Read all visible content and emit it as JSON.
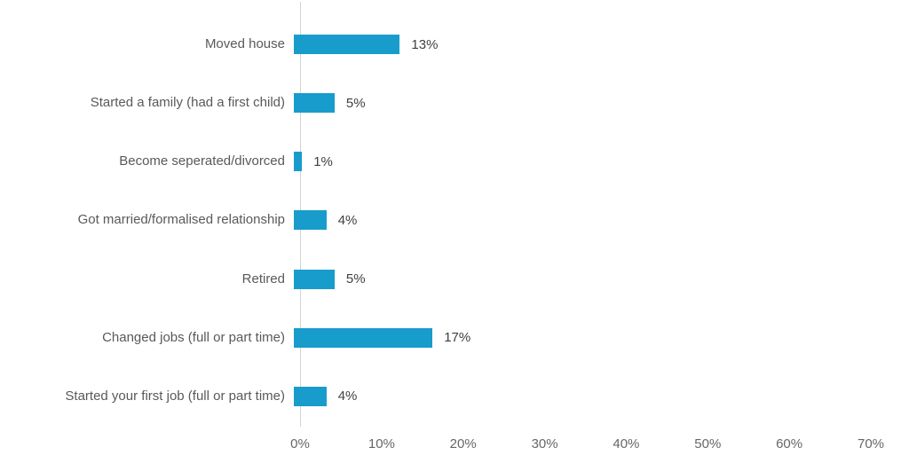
{
  "chart_data": {
    "type": "bar",
    "orientation": "horizontal",
    "categories": [
      "Moved house",
      "Started a family (had a first child)",
      "Become seperated/divorced",
      "Got married/formalised relationship",
      "Retired",
      "Changed jobs (full or part time)",
      "Started your first job (full or part time)"
    ],
    "values": [
      13,
      5,
      1,
      4,
      5,
      17,
      4
    ],
    "value_labels": [
      "13%",
      "5%",
      "1%",
      "4%",
      "5%",
      "17%",
      "4%"
    ],
    "x_ticks": [
      "0%",
      "10%",
      "20%",
      "30%",
      "40%",
      "50%",
      "60%",
      "70%"
    ],
    "xlim": [
      0,
      70
    ],
    "grid": false,
    "legend": false,
    "colors": {
      "bar": "#189CCB",
      "axis_line": "#D2D2D2",
      "category_label": "#595959",
      "value_label": "#404040",
      "tick_label": "#666666",
      "background": "#FFFFFF"
    }
  }
}
